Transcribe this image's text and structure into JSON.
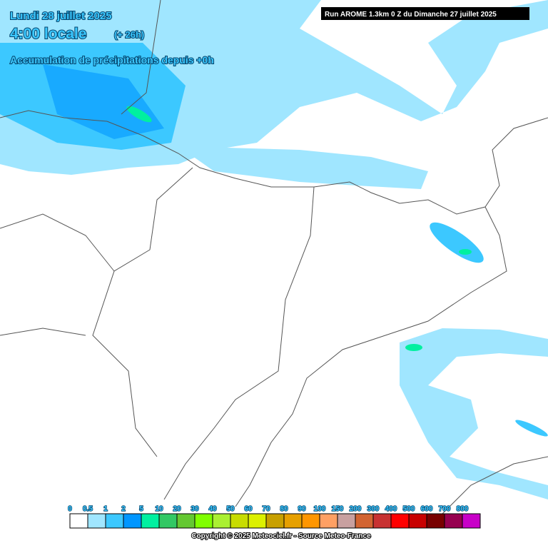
{
  "header": {
    "date": "Lundi 28 juillet 2025",
    "time": "4:00 locale",
    "offset": "(+ 26h)",
    "subtitle": "Accumulation de précipitations depuis +0h",
    "run": "Run AROME 1.3km 0 Z du Dimanche 27 juillet 2025"
  },
  "legend": {
    "labels": [
      "0",
      "0.5",
      "1",
      "2",
      "5",
      "10",
      "20",
      "30",
      "40",
      "50",
      "60",
      "70",
      "80",
      "90",
      "100",
      "150",
      "200",
      "300",
      "400",
      "500",
      "600",
      "700",
      "800"
    ],
    "colors": [
      "#ffffff",
      "#a0e6ff",
      "#3cc8ff",
      "#0096ff",
      "#00f0a0",
      "#32c864",
      "#64c832",
      "#80ff00",
      "#aaf032",
      "#c8dc00",
      "#dcf000",
      "#c8a000",
      "#e6a000",
      "#ff9600",
      "#ffa064",
      "#c8a0a0",
      "#d26432",
      "#c83232",
      "#ff0000",
      "#c80000",
      "#780000",
      "#960050",
      "#c800c8"
    ]
  },
  "footer": {
    "copyright": "Copyright © 2025 Meteociel.fr - Source Meteo-France"
  }
}
